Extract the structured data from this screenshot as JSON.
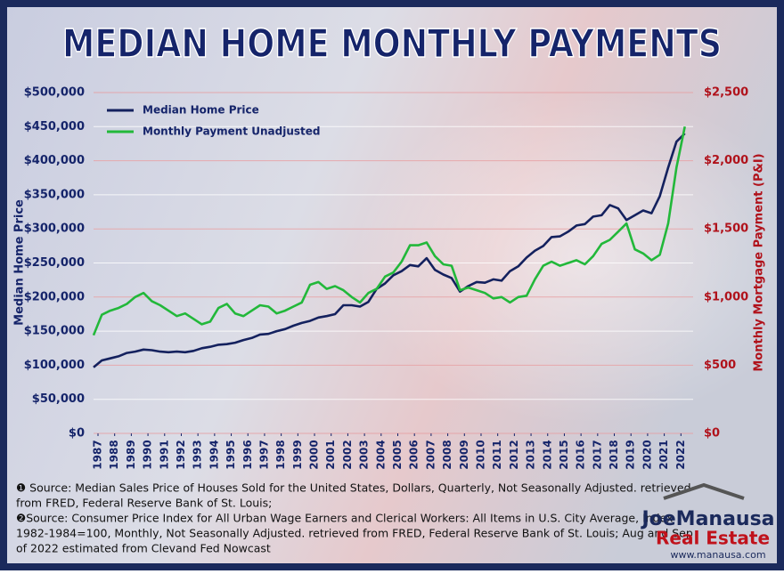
{
  "chart_data": {
    "type": "line",
    "title": "MEDIAN HOME MONTHLY PAYMENTS",
    "y_label": "Median Home Price",
    "y2_label": "Monthly Mortgage Payment (P&I)",
    "x": [
      1987,
      1987.5,
      1988,
      1988.5,
      1989,
      1989.5,
      1990,
      1990.5,
      1991,
      1991.5,
      1992,
      1992.5,
      1993,
      1993.5,
      1994,
      1994.5,
      1995,
      1995.5,
      1996,
      1996.5,
      1997,
      1997.5,
      1998,
      1998.5,
      1999,
      1999.5,
      2000,
      2000.5,
      2001,
      2001.5,
      2002,
      2002.5,
      2003,
      2003.5,
      2004,
      2004.5,
      2005,
      2005.5,
      2006,
      2006.5,
      2007,
      2007.5,
      2008,
      2008.5,
      2009,
      2009.5,
      2010,
      2010.5,
      2011,
      2011.5,
      2012,
      2012.5,
      2013,
      2013.5,
      2014,
      2014.5,
      2015,
      2015.5,
      2016,
      2016.5,
      2017,
      2017.5,
      2018,
      2018.5,
      2019,
      2019.5,
      2020,
      2020.5,
      2021,
      2021.5,
      2022,
      2022.5
    ],
    "xlim": [
      1987,
      2023
    ],
    "xticks": [
      1987,
      1988,
      1989,
      1990,
      1991,
      1992,
      1993,
      1994,
      1995,
      1996,
      1997,
      1998,
      1999,
      2000,
      2001,
      2002,
      2003,
      2004,
      2005,
      2006,
      2007,
      2008,
      2009,
      2010,
      2011,
      2012,
      2013,
      2014,
      2015,
      2016,
      2017,
      2018,
      2019,
      2020,
      2021,
      2022
    ],
    "ylim": [
      0,
      500000
    ],
    "yticks": [
      {
        "value": 0,
        "label": "$0"
      },
      {
        "value": 50000,
        "label": "$50,000"
      },
      {
        "value": 100000,
        "label": "$100,000"
      },
      {
        "value": 150000,
        "label": "$150,000"
      },
      {
        "value": 200000,
        "label": "$200,000"
      },
      {
        "value": 250000,
        "label": "$250,000"
      },
      {
        "value": 300000,
        "label": "$300,000"
      },
      {
        "value": 350000,
        "label": "$350,000"
      },
      {
        "value": 400000,
        "label": "$400,000"
      },
      {
        "value": 450000,
        "label": "$450,000"
      },
      {
        "value": 500000,
        "label": "$500,000"
      }
    ],
    "y2lim": [
      0,
      2500
    ],
    "y2ticks": [
      {
        "value": 0,
        "label": "$0"
      },
      {
        "value": 500,
        "label": "$500"
      },
      {
        "value": 1000,
        "label": "$1,000"
      },
      {
        "value": 1500,
        "label": "$1,500"
      },
      {
        "value": 2000,
        "label": "$2,000"
      },
      {
        "value": 2500,
        "label": "$2,500"
      }
    ],
    "grid": true,
    "legend": "upper left",
    "series": [
      {
        "name": "Median Home Price",
        "color": "#14215e",
        "values": [
          97000,
          107000,
          110000,
          113000,
          118000,
          120000,
          123000,
          122000,
          120000,
          119000,
          120000,
          119000,
          121000,
          125000,
          127000,
          130000,
          131000,
          133000,
          137000,
          140000,
          145000,
          146000,
          150000,
          153000,
          158000,
          162000,
          165000,
          170000,
          172000,
          175000,
          188000,
          188000,
          186000,
          193000,
          212000,
          220000,
          232000,
          238000,
          247000,
          245000,
          257000,
          240000,
          233000,
          228000,
          208000,
          216000,
          222000,
          221000,
          226000,
          224000,
          238000,
          245000,
          258000,
          268000,
          275000,
          288000,
          289000,
          296000,
          305000,
          307000,
          318000,
          320000,
          335000,
          330000,
          313000,
          320000,
          327000,
          323000,
          348000,
          390000,
          428000,
          440000
        ]
      },
      {
        "name": "Monthly Payment Unadjusted",
        "color": "#22b83a",
        "axis": "y2",
        "values": [
          720,
          870,
          900,
          920,
          950,
          1000,
          1030,
          970,
          940,
          900,
          860,
          880,
          840,
          800,
          820,
          920,
          950,
          880,
          860,
          900,
          940,
          930,
          880,
          900,
          930,
          960,
          1090,
          1110,
          1060,
          1080,
          1050,
          1000,
          960,
          1030,
          1060,
          1150,
          1180,
          1260,
          1380,
          1380,
          1400,
          1300,
          1240,
          1230,
          1050,
          1070,
          1050,
          1030,
          990,
          1000,
          960,
          1000,
          1010,
          1130,
          1230,
          1260,
          1230,
          1250,
          1270,
          1240,
          1300,
          1390,
          1420,
          1480,
          1540,
          1350,
          1320,
          1270,
          1310,
          1540,
          1950,
          2250
        ]
      }
    ]
  },
  "notes": [
    [
      "❶ Source: Median Sales Price of Houses Sold for the United States, Dollars, Quarterly, Not Seasonally Adjusted. retrieved",
      "from FRED, Federal Reserve Bank of St. Louis;"
    ],
    [
      "❷Source: Consumer Price Index for All Urban Wage Earners and Clerical Workers: All Items in U.S. City Average, Index",
      "1982-1984=100, Monthly, Not Seasonally Adjusted. retrieved from FRED, Federal Reserve Bank of St. Louis; Aug and Sep",
      "of 2022 estimated from Clevand Fed Nowcast"
    ]
  ],
  "branding": {
    "name": "JoeManausa",
    "sub": "Real Estate",
    "url": "www.manausa.com"
  }
}
